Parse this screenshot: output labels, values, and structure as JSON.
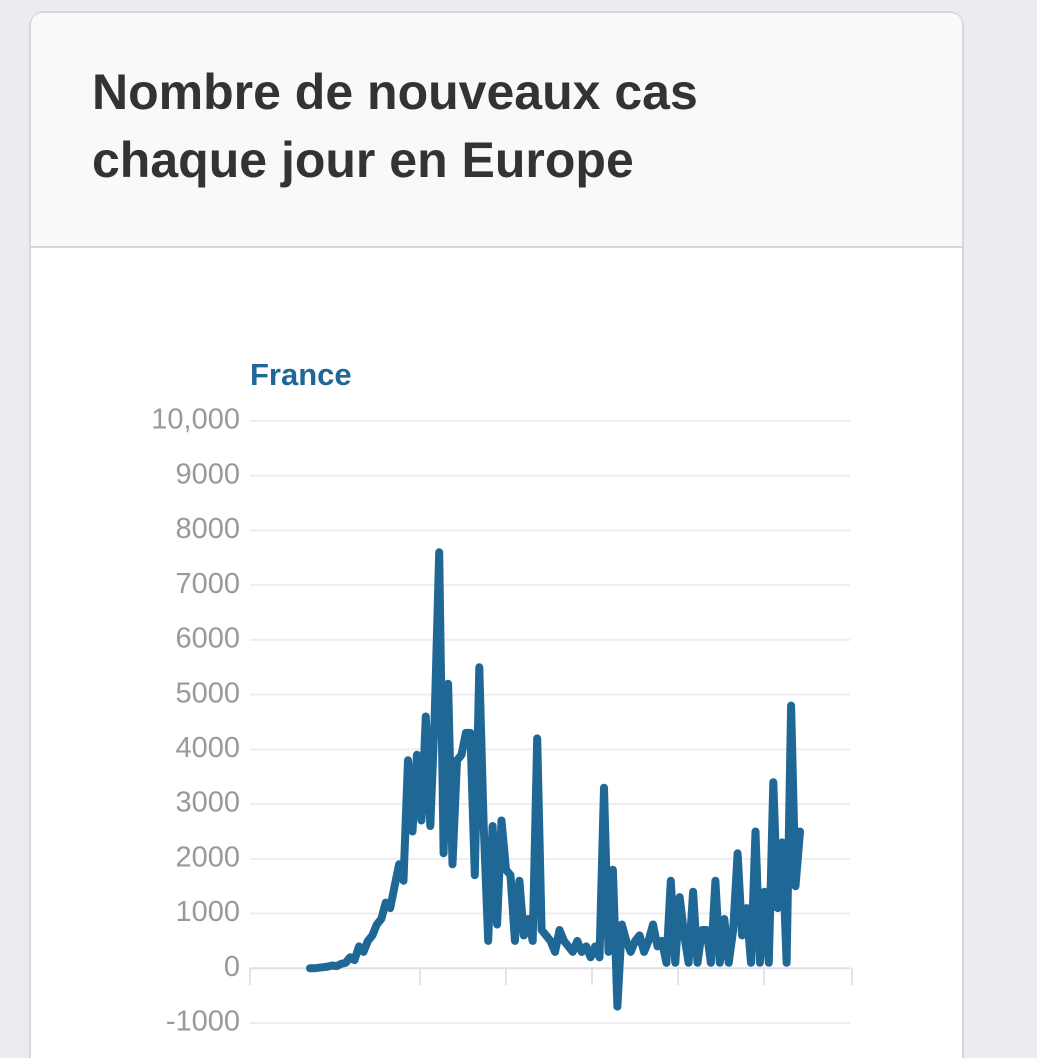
{
  "chart_data": {
    "type": "line",
    "title": [
      "Nombre de nouveaux cas",
      "chaque jour en Europe"
    ],
    "series": [
      {
        "name": "France",
        "color": "#1f6896",
        "values": [
          0,
          0,
          10,
          20,
          30,
          50,
          40,
          80,
          100,
          200,
          150,
          400,
          300,
          500,
          600,
          800,
          900,
          1200,
          1100,
          1500,
          1900,
          1600,
          3800,
          2500,
          3900,
          2700,
          4600,
          2600,
          4600,
          7600,
          2100,
          5200,
          1900,
          3800,
          3900,
          4300,
          4300,
          1700,
          5500,
          2600,
          500,
          2600,
          800,
          2700,
          1800,
          1700,
          500,
          1600,
          600,
          900,
          500,
          4200,
          700,
          600,
          500,
          300,
          700,
          500,
          400,
          300,
          500,
          300,
          400,
          200,
          400,
          200,
          3300,
          300,
          1800,
          -700,
          800,
          500,
          300,
          500,
          600,
          300,
          500,
          800,
          400,
          500,
          100,
          1600,
          100,
          1300,
          600,
          100,
          1400,
          100,
          700,
          700,
          100,
          1600,
          100,
          900,
          100,
          700,
          2100,
          600,
          1100,
          100,
          2500,
          100,
          1400,
          100,
          3400,
          1100,
          2300,
          100,
          4800,
          1500,
          2500
        ]
      }
    ],
    "ylim": [
      -1000,
      10000
    ],
    "yticks": [
      -1000,
      0,
      1000,
      2000,
      3000,
      4000,
      5000,
      6000,
      7000,
      8000,
      9000,
      {
        "value": 10000,
        "label": "10,000"
      }
    ],
    "grid": true
  }
}
